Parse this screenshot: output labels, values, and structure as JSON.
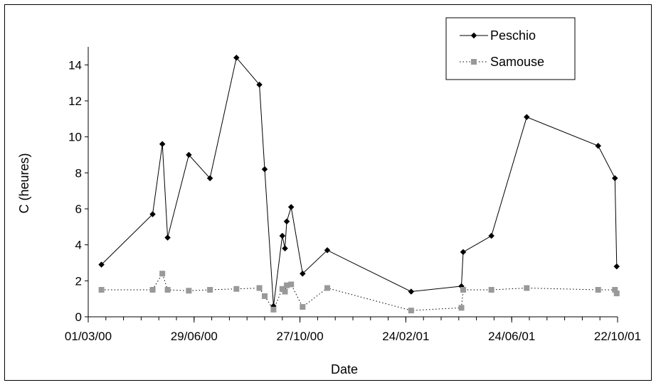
{
  "chart_data": {
    "type": "line",
    "xlabel": "Date",
    "ylabel": "C (heures)",
    "ylim": [
      0,
      15
    ],
    "yticks": [
      0,
      2,
      4,
      6,
      8,
      10,
      12,
      14
    ],
    "xlim": [
      "2000-03-01",
      "2001-10-22"
    ],
    "xtick_labels": [
      "01/03/00",
      "29/06/00",
      "27/10/00",
      "24/02/01",
      "24/06/01",
      "22/10/01"
    ],
    "xticks": [
      "2000-03-01",
      "2000-06-29",
      "2000-10-27",
      "2001-02-24",
      "2001-06-24",
      "2001-10-22"
    ],
    "grid": false,
    "legend_position": "top-right",
    "series": [
      {
        "name": "Peschio",
        "color": "#000000",
        "line_style": "solid",
        "marker": "diamond",
        "points": [
          [
            "2000-03-16",
            2.9
          ],
          [
            "2000-05-13",
            5.7
          ],
          [
            "2000-05-24",
            9.6
          ],
          [
            "2000-05-30",
            4.4
          ],
          [
            "2000-06-23",
            9.0
          ],
          [
            "2000-07-17",
            7.7
          ],
          [
            "2000-08-16",
            14.4
          ],
          [
            "2000-09-11",
            12.9
          ],
          [
            "2000-09-17",
            8.2
          ],
          [
            "2000-09-27",
            0.6
          ],
          [
            "2000-10-07",
            4.5
          ],
          [
            "2000-10-10",
            3.8
          ],
          [
            "2000-10-12",
            5.3
          ],
          [
            "2000-10-17",
            6.1
          ],
          [
            "2000-10-30",
            2.4
          ],
          [
            "2000-11-27",
            3.7
          ],
          [
            "2001-03-02",
            1.4
          ],
          [
            "2001-04-28",
            1.7
          ],
          [
            "2001-04-30",
            3.6
          ],
          [
            "2001-06-01",
            4.5
          ],
          [
            "2001-07-11",
            11.1
          ],
          [
            "2001-09-30",
            9.5
          ],
          [
            "2001-10-19",
            7.7
          ],
          [
            "2001-10-21",
            2.8
          ]
        ]
      },
      {
        "name": "Samouse",
        "color": "#999999",
        "line_style": "dotted",
        "marker": "square",
        "points": [
          [
            "2000-03-16",
            1.5
          ],
          [
            "2000-05-13",
            1.5
          ],
          [
            "2000-05-24",
            2.4
          ],
          [
            "2000-05-30",
            1.5
          ],
          [
            "2000-06-23",
            1.45
          ],
          [
            "2000-07-17",
            1.5
          ],
          [
            "2000-08-16",
            1.55
          ],
          [
            "2000-09-11",
            1.6
          ],
          [
            "2000-09-17",
            1.15
          ],
          [
            "2000-09-27",
            0.4
          ],
          [
            "2000-10-07",
            1.55
          ],
          [
            "2000-10-10",
            1.4
          ],
          [
            "2000-10-12",
            1.75
          ],
          [
            "2000-10-17",
            1.8
          ],
          [
            "2000-10-30",
            0.55
          ],
          [
            "2000-11-27",
            1.6
          ],
          [
            "2001-03-02",
            0.35
          ],
          [
            "2001-04-28",
            0.5
          ],
          [
            "2001-04-30",
            1.5
          ],
          [
            "2001-06-01",
            1.5
          ],
          [
            "2001-07-11",
            1.6
          ],
          [
            "2001-09-30",
            1.5
          ],
          [
            "2001-10-19",
            1.5
          ],
          [
            "2001-10-21",
            1.3
          ]
        ]
      }
    ]
  }
}
